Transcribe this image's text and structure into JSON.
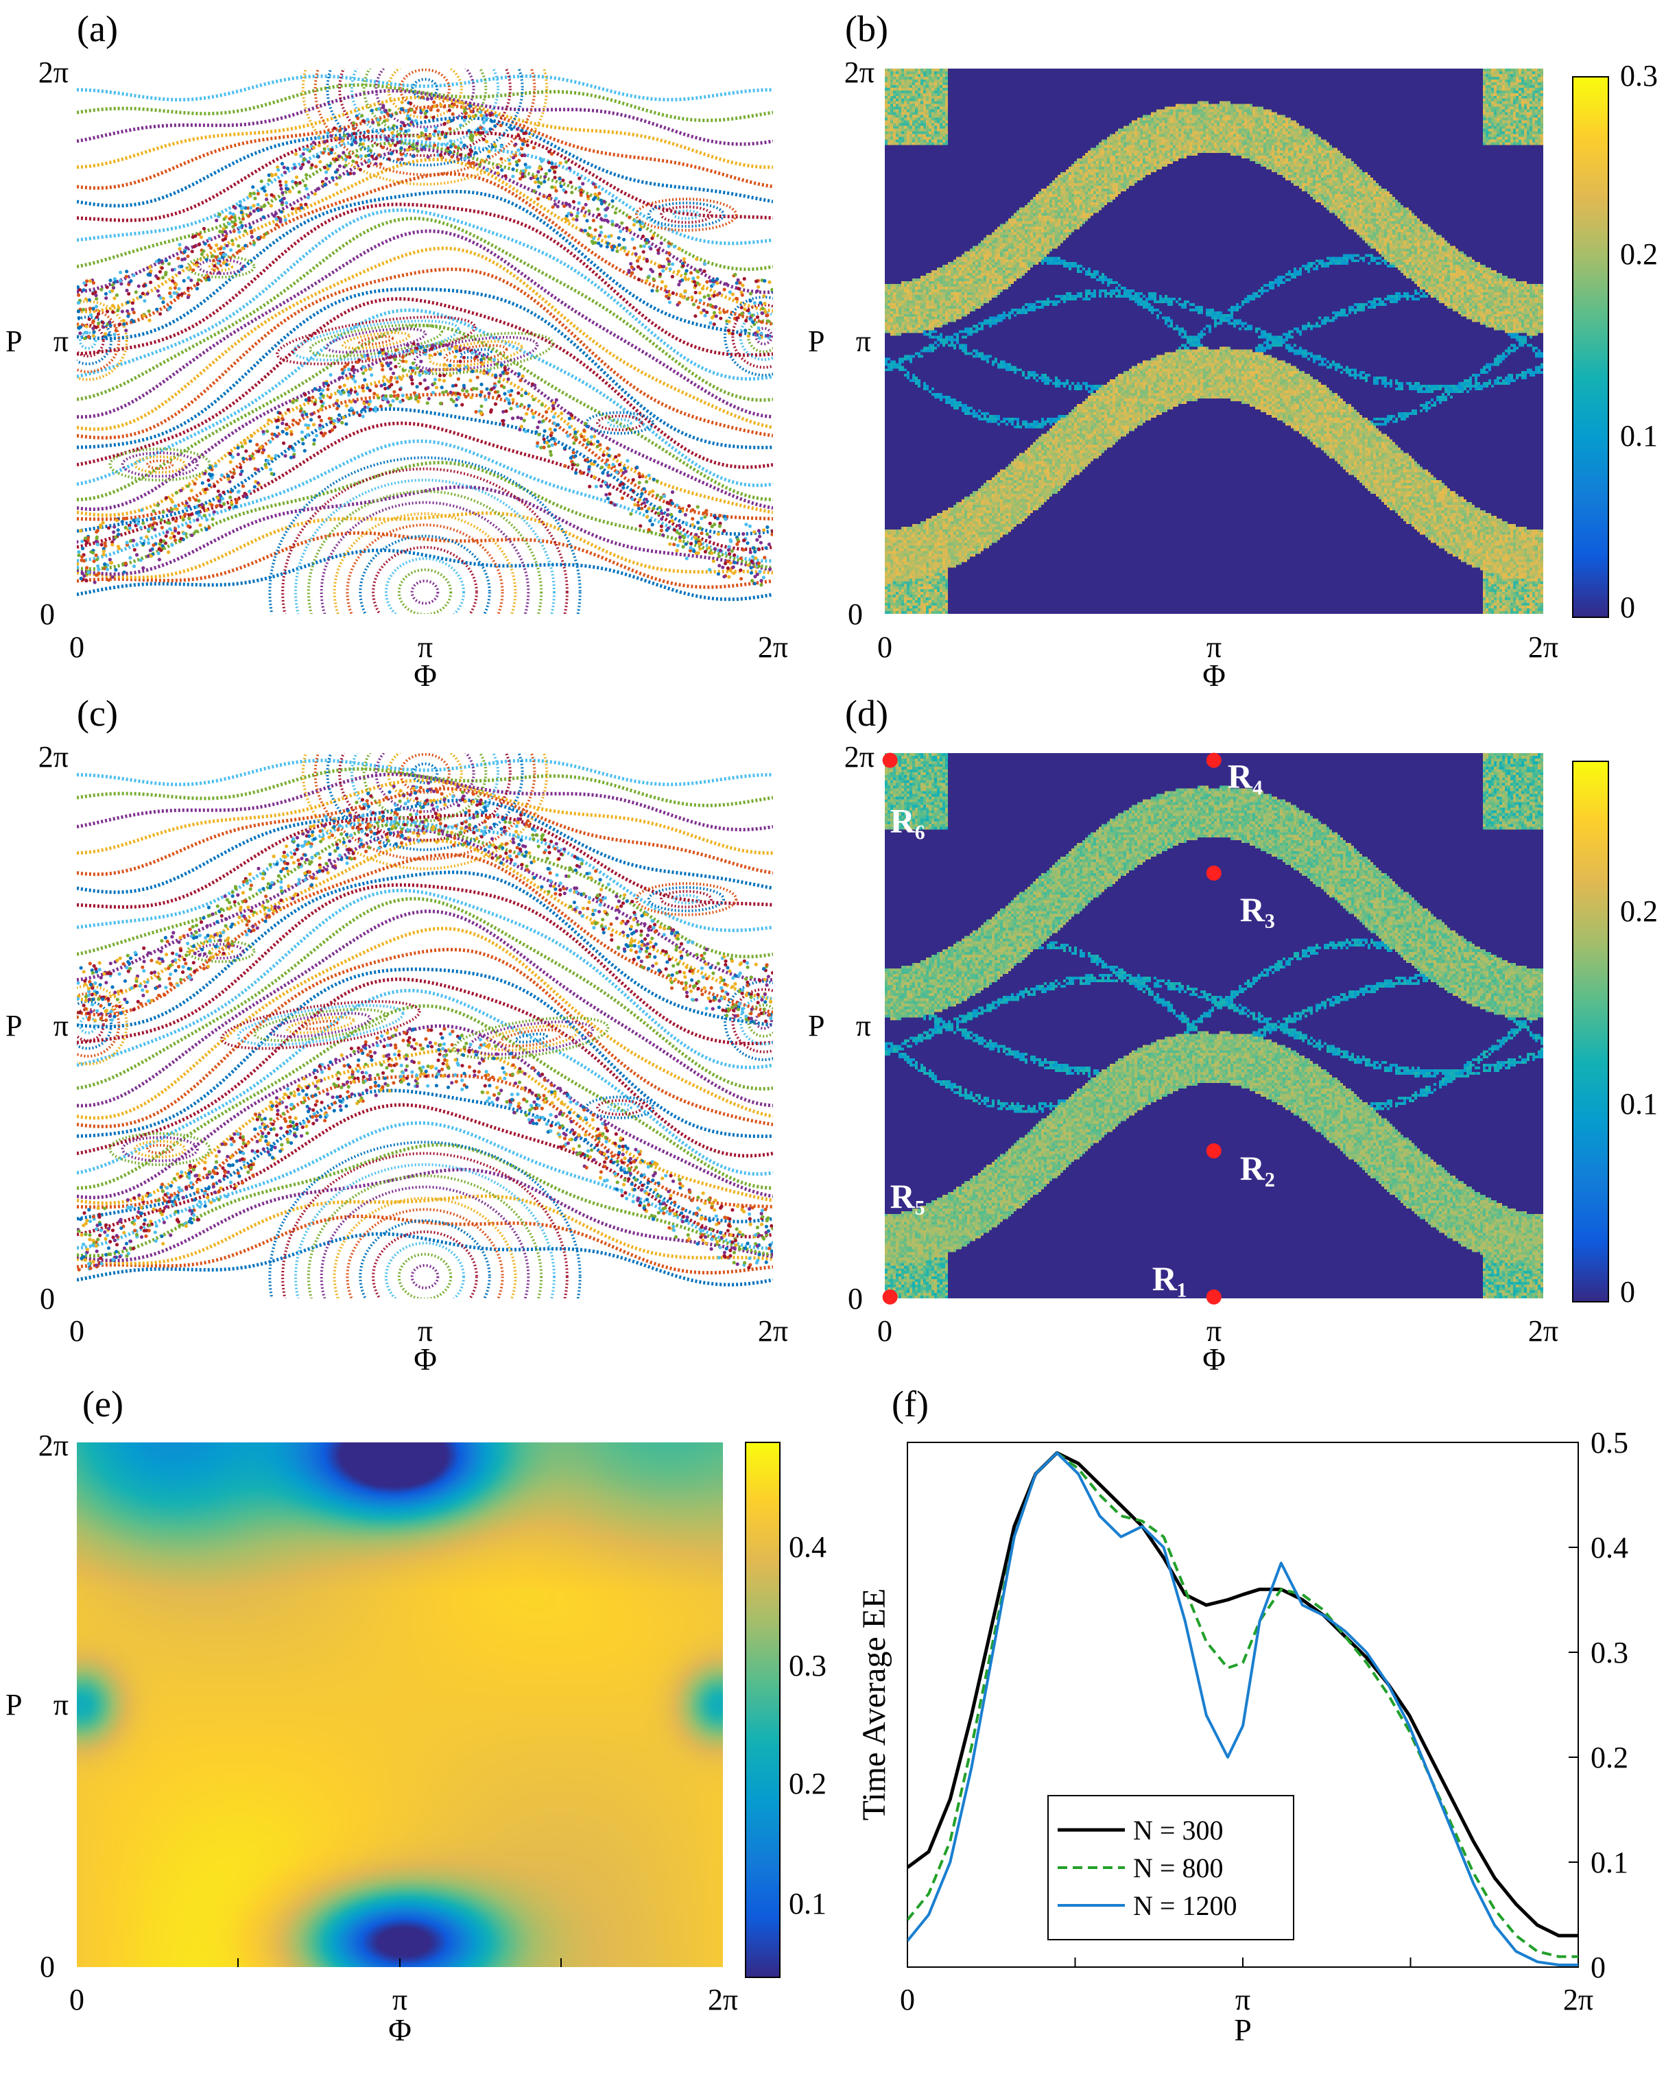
{
  "figure": {
    "panels": [
      {
        "id": "a",
        "label": "(a)",
        "type": "poincare-section",
        "xlabel": "Φ",
        "ylabel": "P",
        "xticks": [
          "0",
          "π",
          "2π"
        ],
        "yticks": [
          "0",
          "π",
          "2π"
        ]
      },
      {
        "id": "b",
        "label": "(b)",
        "type": "heatmap",
        "xlabel": "Φ",
        "ylabel": "P",
        "xticks": [
          "0",
          "π",
          "2π"
        ],
        "yticks": [
          "0",
          "π",
          "2π"
        ],
        "colorbar": {
          "ticks": [
            "0",
            "0.1",
            "0.2",
            "0.3"
          ],
          "range": [
            0,
            0.3
          ]
        }
      },
      {
        "id": "c",
        "label": "(c)",
        "type": "poincare-section",
        "xlabel": "Φ",
        "ylabel": "P",
        "xticks": [
          "0",
          "π",
          "2π"
        ],
        "yticks": [
          "0",
          "π",
          "2π"
        ]
      },
      {
        "id": "d",
        "label": "(d)",
        "type": "heatmap",
        "xlabel": "Φ",
        "ylabel": "P",
        "xticks": [
          "0",
          "π",
          "2π"
        ],
        "yticks": [
          "0",
          "π",
          "2π"
        ],
        "colorbar": {
          "ticks": [
            "0",
            "0.1",
            "0.2"
          ],
          "range": [
            0,
            0.28
          ]
        }
      },
      {
        "id": "e",
        "label": "(e)",
        "type": "heatmap",
        "xlabel": "Φ",
        "ylabel": "P",
        "xticks": [
          "0",
          "π",
          "2π"
        ],
        "yticks": [
          "0",
          "π",
          "2π"
        ],
        "colorbar": {
          "ticks": [
            "0.1",
            "0.2",
            "0.3",
            "0.4"
          ],
          "range": [
            0.03,
            0.48
          ]
        }
      },
      {
        "id": "f",
        "label": "(f)",
        "type": "line",
        "xlabel": "P",
        "ylabel": "Time Average EE",
        "xticks": [
          "0",
          "π",
          "2π"
        ],
        "yticks": [
          "0",
          "0.1",
          "0.2",
          "0.3",
          "0.4",
          "0.5"
        ]
      }
    ],
    "colors": {
      "parula_dark": "#352a87",
      "parula_blue": "#1e88d8",
      "parula_teal": "#2fb8b0",
      "parula_yellow": "#f9fb0e",
      "red_marker": "#ff2020",
      "n300": "#000000",
      "n800": "#22a02a",
      "n1200": "#1a7fd0"
    }
  },
  "chart_data": [
    {
      "panel": "a",
      "type": "scatter",
      "title": "",
      "xlabel": "Φ",
      "ylabel": "P",
      "xlim": [
        0,
        6.283
      ],
      "ylim": [
        0,
        6.283
      ],
      "description_series": [
        {
          "family": "island",
          "center": [
            3.14,
            6.05
          ],
          "rx": 1.1,
          "ry": 1.1
        },
        {
          "family": "island",
          "center": [
            3.14,
            0.22
          ],
          "rx": 1.35,
          "ry": 1.55
        },
        {
          "family": "island",
          "center": [
            2.7,
            3.15
          ],
          "rx": 0.9,
          "ry": 0.22
        },
        {
          "family": "island",
          "center": [
            0.15,
            3.15
          ],
          "rx": 0.35,
          "ry": 0.45
        },
        {
          "family": "island",
          "center": [
            6.1,
            3.2
          ],
          "rx": 0.35,
          "ry": 0.45
        },
        {
          "family": "island",
          "center": [
            0.7,
            1.7
          ],
          "rx": 0.45,
          "ry": 0.2
        },
        {
          "family": "island",
          "center": [
            5.5,
            4.6
          ],
          "rx": 0.45,
          "ry": 0.2
        }
      ]
    },
    {
      "panel": "b",
      "type": "heatmap",
      "title": "",
      "xlabel": "Φ",
      "ylabel": "P",
      "xlim": [
        0,
        6.283
      ],
      "ylim": [
        0,
        6.283
      ],
      "zlim": [
        0,
        0.3
      ]
    },
    {
      "panel": "c",
      "type": "scatter",
      "title": "",
      "xlabel": "Φ",
      "ylabel": "P",
      "xlim": [
        0,
        6.283
      ],
      "ylim": [
        0,
        6.283
      ]
    },
    {
      "panel": "d",
      "type": "heatmap",
      "title": "",
      "xlabel": "Φ",
      "ylabel": "P",
      "xlim": [
        0,
        6.283
      ],
      "ylim": [
        0,
        6.283
      ],
      "zlim": [
        0,
        0.28
      ],
      "points": [
        {
          "name": "R₁",
          "x": 3.14,
          "y": 0.0
        },
        {
          "name": "R₂",
          "x": 3.14,
          "y": 1.7
        },
        {
          "name": "R₃",
          "x": 3.14,
          "y": 4.9
        },
        {
          "name": "R₄",
          "x": 3.14,
          "y": 6.2
        },
        {
          "name": "R₅",
          "x": 0.05,
          "y": 0.0
        },
        {
          "name": "R₆",
          "x": 0.05,
          "y": 6.2
        }
      ]
    },
    {
      "panel": "e",
      "type": "heatmap",
      "title": "",
      "xlabel": "Φ",
      "ylabel": "P",
      "xlim": [
        0,
        6.283
      ],
      "ylim": [
        0,
        6.283
      ],
      "zlim": [
        0.03,
        0.48
      ]
    },
    {
      "panel": "f",
      "type": "line",
      "title": "",
      "xlabel": "P",
      "ylabel": "Time Average EE",
      "xlim": [
        0,
        6.283
      ],
      "ylim": [
        0,
        0.5
      ],
      "x": [
        0,
        0.2,
        0.4,
        0.6,
        0.8,
        1.0,
        1.2,
        1.4,
        1.6,
        1.8,
        2.0,
        2.2,
        2.4,
        2.6,
        2.8,
        3.0,
        3.142,
        3.3,
        3.5,
        3.7,
        3.9,
        4.1,
        4.3,
        4.5,
        4.7,
        4.9,
        5.1,
        5.3,
        5.5,
        5.7,
        5.9,
        6.1,
        6.283
      ],
      "series": [
        {
          "name": "N = 300",
          "values": [
            0.095,
            0.11,
            0.16,
            0.24,
            0.33,
            0.42,
            0.47,
            0.49,
            0.48,
            0.46,
            0.44,
            0.42,
            0.39,
            0.355,
            0.345,
            0.35,
            0.355,
            0.36,
            0.36,
            0.35,
            0.335,
            0.315,
            0.295,
            0.27,
            0.24,
            0.2,
            0.16,
            0.12,
            0.085,
            0.06,
            0.04,
            0.03,
            0.03
          ]
        },
        {
          "name": "N = 800",
          "values": [
            0.045,
            0.07,
            0.12,
            0.21,
            0.31,
            0.41,
            0.47,
            0.49,
            0.475,
            0.45,
            0.43,
            0.425,
            0.41,
            0.36,
            0.31,
            0.285,
            0.29,
            0.33,
            0.36,
            0.355,
            0.34,
            0.315,
            0.29,
            0.26,
            0.225,
            0.18,
            0.135,
            0.09,
            0.055,
            0.03,
            0.015,
            0.01,
            0.01
          ]
        },
        {
          "name": "N = 1200",
          "values": [
            0.025,
            0.05,
            0.1,
            0.19,
            0.3,
            0.41,
            0.47,
            0.49,
            0.47,
            0.43,
            0.41,
            0.42,
            0.4,
            0.33,
            0.24,
            0.2,
            0.23,
            0.33,
            0.385,
            0.345,
            0.335,
            0.32,
            0.3,
            0.27,
            0.23,
            0.18,
            0.13,
            0.08,
            0.04,
            0.015,
            0.005,
            0.002,
            0.002
          ]
        }
      ],
      "legend": {
        "placement": "lower-center",
        "entries": [
          "N = 300",
          "N = 800",
          "N = 1200"
        ],
        "styles": [
          "solid",
          "dashed",
          "solid"
        ]
      }
    }
  ]
}
